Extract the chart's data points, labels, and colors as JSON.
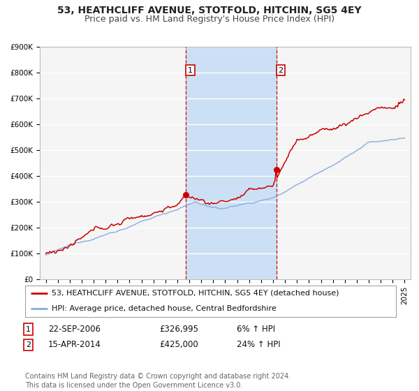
{
  "title": "53, HEATHCLIFF AVENUE, STOTFOLD, HITCHIN, SG5 4EY",
  "subtitle": "Price paid vs. HM Land Registry's House Price Index (HPI)",
  "ylim": [
    0,
    900000
  ],
  "yticks": [
    0,
    100000,
    200000,
    300000,
    400000,
    500000,
    600000,
    700000,
    800000,
    900000
  ],
  "ytick_labels": [
    "£0",
    "£100K",
    "£200K",
    "£300K",
    "£400K",
    "£500K",
    "£600K",
    "£700K",
    "£800K",
    "£900K"
  ],
  "xlim_start": 1994.5,
  "xlim_end": 2025.5,
  "sale1_x": 2006.728,
  "sale1_y": 326995,
  "sale2_x": 2014.286,
  "sale2_y": 425000,
  "sale1_date": "22-SEP-2006",
  "sale1_price": "£326,995",
  "sale1_hpi": "6% ↑ HPI",
  "sale2_date": "15-APR-2014",
  "sale2_price": "£425,000",
  "sale2_hpi": "24% ↑ HPI",
  "line_color_property": "#cc0000",
  "line_color_hpi": "#88aadd",
  "background_color": "#ffffff",
  "plot_background": "#f5f5f5",
  "grid_color": "#ffffff",
  "shade_color": "#cce0f5",
  "legend_label_property": "53, HEATHCLIFF AVENUE, STOTFOLD, HITCHIN, SG5 4EY (detached house)",
  "legend_label_hpi": "HPI: Average price, detached house, Central Bedfordshire",
  "footer": "Contains HM Land Registry data © Crown copyright and database right 2024.\nThis data is licensed under the Open Government Licence v3.0.",
  "title_fontsize": 10,
  "subtitle_fontsize": 9,
  "tick_fontsize": 7.5,
  "legend_fontsize": 8,
  "footer_fontsize": 7
}
